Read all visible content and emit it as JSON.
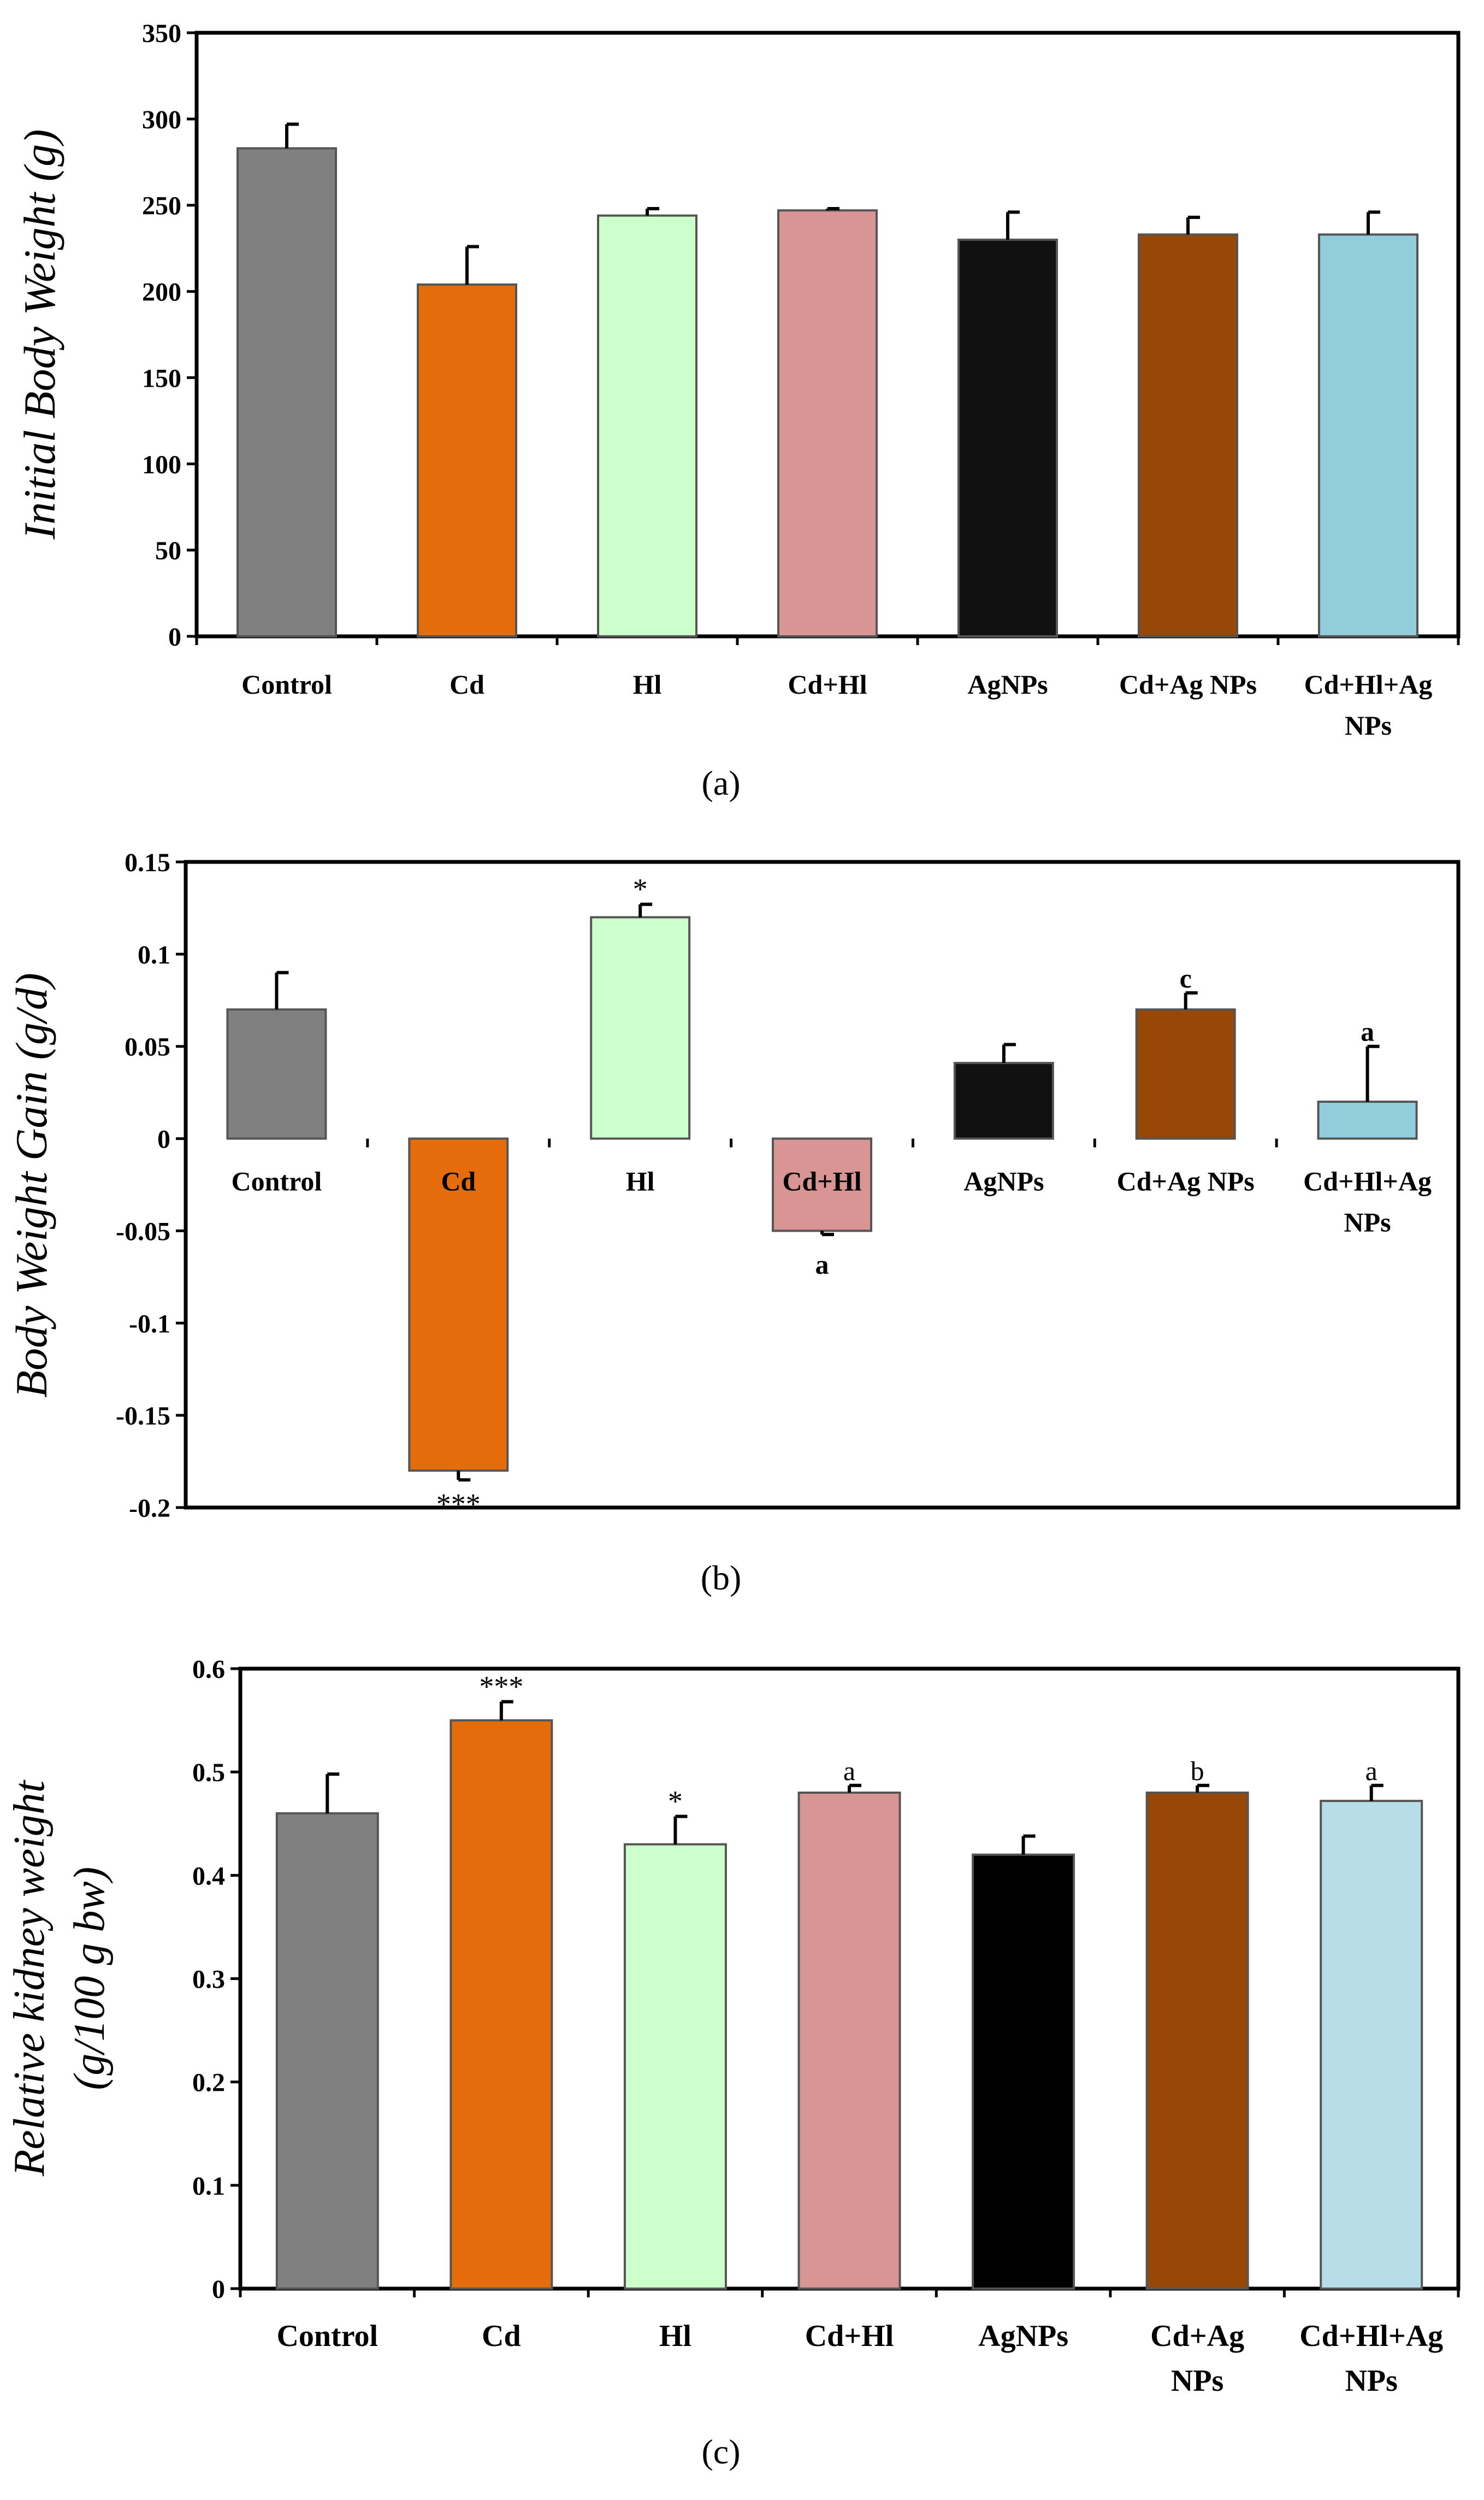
{
  "chart_data": [
    {
      "type": "bar",
      "panel_label": "(a)",
      "categories": [
        "Control",
        "Cd",
        "Hl",
        "Cd+Hl",
        "AgNPs",
        "Cd+Ag NPs",
        "Cd+Hl+Ag NPs"
      ],
      "category_lines": [
        [
          "Control"
        ],
        [
          "Cd"
        ],
        [
          "Hl"
        ],
        [
          "Cd+Hl"
        ],
        [
          "AgNPs"
        ],
        [
          "Cd+Ag NPs"
        ],
        [
          "Cd+Hl+Ag",
          "NPs"
        ]
      ],
      "values": [
        283,
        204,
        244,
        247,
        230,
        233,
        233
      ],
      "errors": [
        14,
        22,
        4,
        1,
        16,
        10,
        13
      ],
      "annotations": [
        "",
        "",
        "",
        "",
        "",
        "",
        ""
      ],
      "colors": [
        "#808080",
        "#E46C0A",
        "#CCFFCC",
        "#D99594",
        "#111111",
        "#974806",
        "#92CDDC"
      ],
      "title": "",
      "xlabel": "",
      "ylabel": "Initial Body Weight (g)",
      "ylim": [
        0,
        350
      ],
      "yticks": [
        0,
        50,
        100,
        150,
        200,
        250,
        300,
        350
      ],
      "ytick_labels": [
        "0",
        "50",
        "100",
        "150",
        "200",
        "250",
        "300",
        "350"
      ],
      "grid": false
    },
    {
      "type": "bar",
      "panel_label": "(b)",
      "categories": [
        "Control",
        "Cd",
        "Hl",
        "Cd+Hl",
        "AgNPs",
        "Cd+Ag NPs",
        "Cd+Hl+Ag NPs"
      ],
      "category_lines": [
        [
          "Control"
        ],
        [
          "Cd"
        ],
        [
          "Hl"
        ],
        [
          "Cd+Hl"
        ],
        [
          "AgNPs"
        ],
        [
          "Cd+Ag NPs"
        ],
        [
          "Cd+Hl+Ag",
          "NPs"
        ]
      ],
      "values": [
        0.07,
        -0.18,
        0.12,
        -0.05,
        0.041,
        0.07,
        0.02
      ],
      "errors": [
        0.02,
        0.005,
        0.007,
        0.002,
        0.01,
        0.009,
        0.03
      ],
      "annotations": [
        "",
        "***",
        "*",
        "a",
        "",
        "c",
        "a"
      ],
      "colors": [
        "#808080",
        "#E46C0A",
        "#CCFFCC",
        "#D99594",
        "#111111",
        "#974806",
        "#92CDDC"
      ],
      "title": "",
      "xlabel": "",
      "ylabel": "Body Weight Gain (g/d)",
      "ylim": [
        -0.2,
        0.15
      ],
      "yticks": [
        -0.2,
        -0.15,
        -0.1,
        -0.05,
        0,
        0.05,
        0.1,
        0.15
      ],
      "ytick_labels": [
        "-0.2",
        "-0.15",
        "-0.1",
        "-0.05",
        "0",
        "0.05",
        "0.1",
        "0.15"
      ],
      "grid": false
    },
    {
      "type": "bar",
      "panel_label": "(c)",
      "categories": [
        "Control",
        "Cd",
        "Hl",
        "Cd+Hl",
        "AgNPs",
        "Cd+Ag NPs",
        "Cd+Hl+Ag NPs"
      ],
      "category_lines": [
        [
          "Control"
        ],
        [
          "Cd"
        ],
        [
          "Hl"
        ],
        [
          "Cd+Hl"
        ],
        [
          "AgNPs"
        ],
        [
          "Cd+Ag",
          "NPs"
        ],
        [
          "Cd+Hl+Ag",
          "NPs"
        ]
      ],
      "values": [
        0.46,
        0.55,
        0.43,
        0.48,
        0.42,
        0.48,
        0.472
      ],
      "errors": [
        0.038,
        0.018,
        0.027,
        0.007,
        0.018,
        0.007,
        0.015
      ],
      "annotations": [
        "",
        "***",
        "*",
        "a",
        "",
        "b",
        "a"
      ],
      "colors": [
        "#808080",
        "#E46C0A",
        "#CCFFCC",
        "#D99594",
        "#000000",
        "#974806",
        "#B7DDE8"
      ],
      "title": "",
      "xlabel": "",
      "ylabel": "Relative kidney weight",
      "ylabel2": "(g/100 g bw)",
      "ylim": [
        0,
        0.6
      ],
      "yticks": [
        0,
        0.1,
        0.2,
        0.3,
        0.4,
        0.5,
        0.6
      ],
      "ytick_labels": [
        "0",
        "0.1",
        "0.2",
        "0.3",
        "0.4",
        "0.5",
        "0.6"
      ],
      "grid": false
    }
  ]
}
